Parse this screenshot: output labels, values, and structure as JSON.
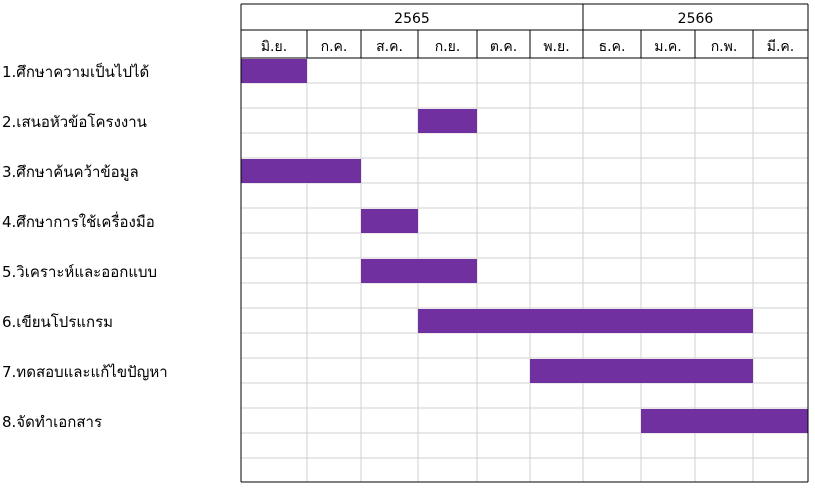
{
  "chart_data": {
    "type": "gantt",
    "bar_color": "#7030A0",
    "grid_color": "#d0d0d0",
    "border_color": "#000000",
    "years": [
      {
        "label": "2565",
        "start": 0,
        "span": 6
      },
      {
        "label": "2566",
        "start": 6,
        "span": 4
      }
    ],
    "months": [
      "มิ.ย.",
      "ก.ค.",
      "ส.ค.",
      "ก.ย.",
      "ต.ค.",
      "พ.ย.",
      "ธ.ค.",
      "ม.ค.",
      "ก.พ.",
      "มี.ค."
    ],
    "tasks": [
      {
        "label": "1.ศึกษาความเป็นไปได้",
        "start": 0,
        "end": 1
      },
      {
        "label": "2.เสนอหัวข้อโครงงาน",
        "start": 3,
        "end": 4
      },
      {
        "label": "3.ศึกษาค้นคว้าข้อมูล",
        "start": 0,
        "end": 2
      },
      {
        "label": "4.ศึกษาการใช้เครื่องมือ",
        "start": 2,
        "end": 3
      },
      {
        "label": "5.วิเคราะห์และออกแบบ",
        "start": 2,
        "end": 4
      },
      {
        "label": "6.เขียนโปรแกรม",
        "start": 3,
        "end": 9
      },
      {
        "label": "7.ทดสอบและแก้ไขปัญหา",
        "start": 5,
        "end": 9
      },
      {
        "label": "8.จัดทำเอกสาร",
        "start": 7,
        "end": 10
      }
    ]
  }
}
